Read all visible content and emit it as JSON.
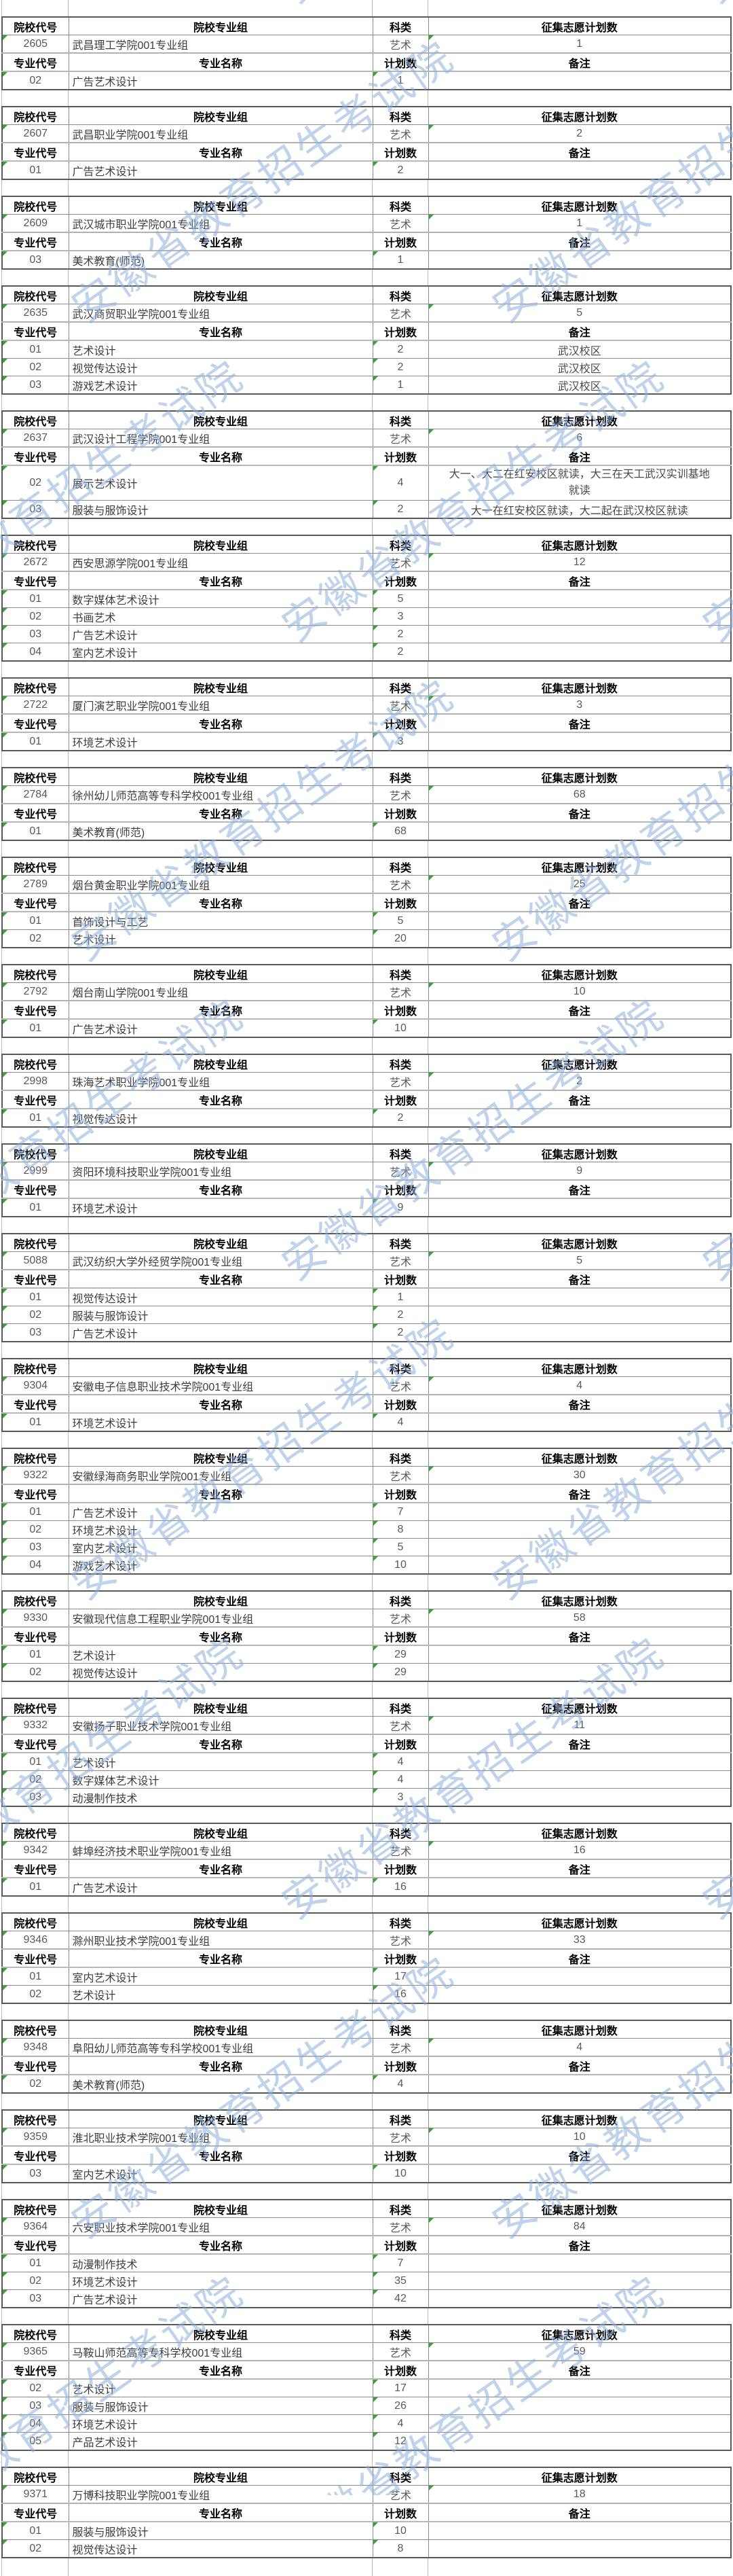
{
  "watermark": {
    "text": "安徽省教育招生考试院",
    "color": "#8eafdb"
  },
  "colors": {
    "green_triangle": "#3aa23a",
    "border_outer": "#595959",
    "border_inner": "#8a8a8a",
    "header_text": "#000000",
    "body_text": "#3d3d3d"
  },
  "labels": {
    "college_code": "院校代号",
    "college_group": "院校专业组",
    "subject_type": "科类",
    "plan_total": "征集志愿计划数",
    "major_code": "专业代号",
    "major_name": "专业名称",
    "plan_count": "计划数",
    "remark": "备注"
  },
  "blocks": [
    {
      "code": "2605",
      "group": "武昌理工学院001专业组",
      "subject": "艺术",
      "total": "1",
      "majors": [
        {
          "code": "02",
          "name": "广告艺术设计",
          "count": "1",
          "remark": ""
        }
      ]
    },
    {
      "code": "2607",
      "group": "武昌职业学院001专业组",
      "subject": "艺术",
      "total": "2",
      "majors": [
        {
          "code": "01",
          "name": "广告艺术设计",
          "count": "2",
          "remark": ""
        }
      ]
    },
    {
      "code": "2609",
      "group": "武汉城市职业学院001专业组",
      "subject": "艺术",
      "total": "1",
      "majors": [
        {
          "code": "03",
          "name": "美术教育(师范)",
          "count": "1",
          "remark": ""
        }
      ]
    },
    {
      "code": "2635",
      "group": "武汉商贸职业学院001专业组",
      "subject": "艺术",
      "total": "5",
      "majors": [
        {
          "code": "01",
          "name": "艺术设计",
          "count": "2",
          "remark": "武汉校区"
        },
        {
          "code": "02",
          "name": "视觉传达设计",
          "count": "2",
          "remark": "武汉校区"
        },
        {
          "code": "03",
          "name": "游戏艺术设计",
          "count": "1",
          "remark": "武汉校区"
        }
      ]
    },
    {
      "code": "2637",
      "group": "武汉设计工程学院001专业组",
      "subject": "艺术",
      "total": "6",
      "majors": [
        {
          "code": "02",
          "name": "展示艺术设计",
          "count": "4",
          "remark": "大一、大二在红安校区就读，大三在天工武汉实训基地就读"
        },
        {
          "code": "03",
          "name": "服装与服饰设计",
          "count": "2",
          "remark": "大一在红安校区就读，大二起在武汉校区就读"
        }
      ]
    },
    {
      "code": "2672",
      "group": "西安思源学院001专业组",
      "subject": "艺术",
      "total": "12",
      "majors": [
        {
          "code": "01",
          "name": "数字媒体艺术设计",
          "count": "5",
          "remark": ""
        },
        {
          "code": "02",
          "name": "书画艺术",
          "count": "3",
          "remark": ""
        },
        {
          "code": "03",
          "name": "广告艺术设计",
          "count": "2",
          "remark": ""
        },
        {
          "code": "04",
          "name": "室内艺术设计",
          "count": "2",
          "remark": ""
        }
      ]
    },
    {
      "code": "2722",
      "group": "厦门演艺职业学院001专业组",
      "subject": "艺术",
      "total": "3",
      "majors": [
        {
          "code": "01",
          "name": "环境艺术设计",
          "count": "3",
          "remark": ""
        }
      ]
    },
    {
      "code": "2784",
      "group": "徐州幼儿师范高等专科学校001专业组",
      "subject": "艺术",
      "total": "68",
      "majors": [
        {
          "code": "01",
          "name": "美术教育(师范)",
          "count": "68",
          "remark": ""
        }
      ]
    },
    {
      "code": "2789",
      "group": "烟台黄金职业学院001专业组",
      "subject": "艺术",
      "total": "25",
      "majors": [
        {
          "code": "01",
          "name": "首饰设计与工艺",
          "count": "5",
          "remark": ""
        },
        {
          "code": "02",
          "name": "艺术设计",
          "count": "20",
          "remark": ""
        }
      ]
    },
    {
      "code": "2792",
      "group": "烟台南山学院001专业组",
      "subject": "艺术",
      "total": "10",
      "majors": [
        {
          "code": "01",
          "name": "广告艺术设计",
          "count": "10",
          "remark": ""
        }
      ]
    },
    {
      "code": "2998",
      "group": "珠海艺术职业学院001专业组",
      "subject": "艺术",
      "total": "2",
      "majors": [
        {
          "code": "01",
          "name": "视觉传达设计",
          "count": "2",
          "remark": ""
        }
      ]
    },
    {
      "code": "2999",
      "group": "资阳环境科技职业学院001专业组",
      "subject": "艺术",
      "total": "9",
      "majors": [
        {
          "code": "01",
          "name": "环境艺术设计",
          "count": "9",
          "remark": ""
        }
      ]
    },
    {
      "code": "5088",
      "group": "武汉纺织大学外经贸学院001专业组",
      "subject": "艺术",
      "total": "5",
      "majors": [
        {
          "code": "01",
          "name": "视觉传达设计",
          "count": "1",
          "remark": ""
        },
        {
          "code": "02",
          "name": "服装与服饰设计",
          "count": "2",
          "remark": ""
        },
        {
          "code": "03",
          "name": "广告艺术设计",
          "count": "2",
          "remark": ""
        }
      ]
    },
    {
      "code": "9304",
      "group": "安徽电子信息职业技术学院001专业组",
      "subject": "艺术",
      "total": "4",
      "majors": [
        {
          "code": "01",
          "name": "环境艺术设计",
          "count": "4",
          "remark": ""
        }
      ]
    },
    {
      "code": "9322",
      "group": "安徽绿海商务职业学院001专业组",
      "subject": "艺术",
      "total": "30",
      "majors": [
        {
          "code": "01",
          "name": "广告艺术设计",
          "count": "7",
          "remark": ""
        },
        {
          "code": "02",
          "name": "环境艺术设计",
          "count": "8",
          "remark": ""
        },
        {
          "code": "03",
          "name": "室内艺术设计",
          "count": "5",
          "remark": ""
        },
        {
          "code": "04",
          "name": "游戏艺术设计",
          "count": "10",
          "remark": ""
        }
      ]
    },
    {
      "code": "9330",
      "group": "安徽现代信息工程职业学院001专业组",
      "subject": "艺术",
      "total": "58",
      "majors": [
        {
          "code": "01",
          "name": "艺术设计",
          "count": "29",
          "remark": ""
        },
        {
          "code": "02",
          "name": "视觉传达设计",
          "count": "29",
          "remark": ""
        }
      ]
    },
    {
      "code": "9332",
      "group": "安徽扬子职业技术学院001专业组",
      "subject": "艺术",
      "total": "11",
      "majors": [
        {
          "code": "01",
          "name": "艺术设计",
          "count": "4",
          "remark": ""
        },
        {
          "code": "02",
          "name": "数字媒体艺术设计",
          "count": "4",
          "remark": ""
        },
        {
          "code": "03",
          "name": "动漫制作技术",
          "count": "3",
          "remark": ""
        }
      ]
    },
    {
      "code": "9342",
      "group": "蚌埠经济技术职业学院001专业组",
      "subject": "艺术",
      "total": "16",
      "majors": [
        {
          "code": "01",
          "name": "广告艺术设计",
          "count": "16",
          "remark": ""
        }
      ]
    },
    {
      "code": "9346",
      "group": "滁州职业技术学院001专业组",
      "subject": "艺术",
      "total": "33",
      "majors": [
        {
          "code": "01",
          "name": "室内艺术设计",
          "count": "17",
          "remark": ""
        },
        {
          "code": "02",
          "name": "艺术设计",
          "count": "16",
          "remark": ""
        }
      ]
    },
    {
      "code": "9348",
      "group": "阜阳幼儿师范高等专科学校001专业组",
      "subject": "艺术",
      "total": "4",
      "majors": [
        {
          "code": "02",
          "name": "美术教育(师范)",
          "count": "4",
          "remark": ""
        }
      ]
    },
    {
      "code": "9359",
      "group": "淮北职业技术学院001专业组",
      "subject": "艺术",
      "total": "10",
      "majors": [
        {
          "code": "03",
          "name": "室内艺术设计",
          "count": "10",
          "remark": ""
        }
      ]
    },
    {
      "code": "9364",
      "group": "六安职业技术学院001专业组",
      "subject": "艺术",
      "total": "84",
      "majors": [
        {
          "code": "01",
          "name": "动漫制作技术",
          "count": "7",
          "remark": ""
        },
        {
          "code": "02",
          "name": "环境艺术设计",
          "count": "35",
          "remark": ""
        },
        {
          "code": "03",
          "name": "广告艺术设计",
          "count": "42",
          "remark": ""
        }
      ]
    },
    {
      "code": "9365",
      "group": "马鞍山师范高等专科学校001专业组",
      "subject": "艺术",
      "total": "59",
      "majors": [
        {
          "code": "02",
          "name": "艺术设计",
          "count": "17",
          "remark": ""
        },
        {
          "code": "03",
          "name": "服装与服饰设计",
          "count": "26",
          "remark": ""
        },
        {
          "code": "04",
          "name": "环境艺术设计",
          "count": "4",
          "remark": ""
        },
        {
          "code": "05",
          "name": "产品艺术设计",
          "count": "12",
          "remark": ""
        }
      ]
    },
    {
      "code": "9371",
      "group": "万博科技职业学院001专业组",
      "subject": "艺术",
      "total": "18",
      "majors": [
        {
          "code": "01",
          "name": "服装与服饰设计",
          "count": "10",
          "remark": ""
        },
        {
          "code": "02",
          "name": "视觉传达设计",
          "count": "8",
          "remark": ""
        }
      ]
    }
  ]
}
